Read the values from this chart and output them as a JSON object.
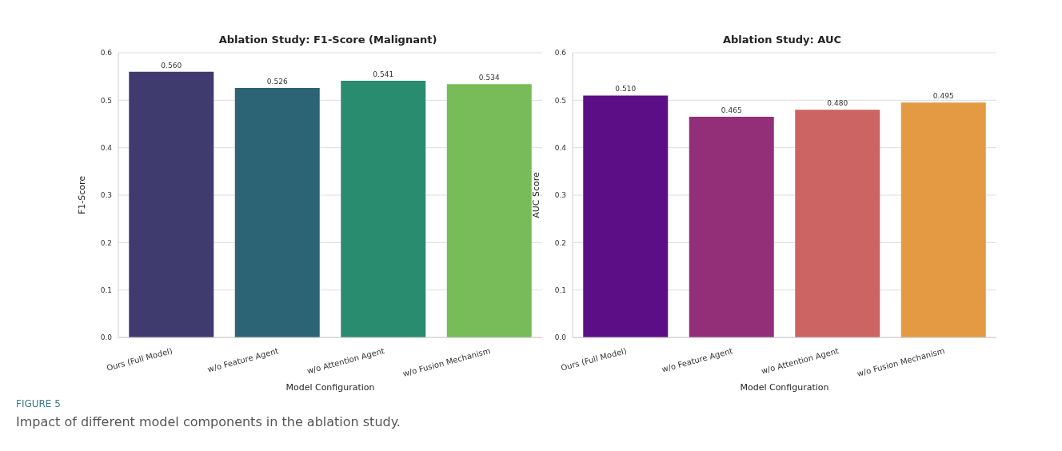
{
  "chart_data": [
    {
      "type": "bar",
      "title": "Ablation Study: F1-Score (Malignant)",
      "xlabel": "Model Configuration",
      "ylabel": "F1-Score",
      "categories": [
        "Ours (Full Model)",
        "w/o Feature Agent",
        "w/o Attention Agent",
        "w/o Fusion Mechanism"
      ],
      "values": [
        0.56,
        0.526,
        0.541,
        0.534
      ],
      "value_labels": [
        "0.560",
        "0.526",
        "0.541",
        "0.534"
      ],
      "colors": [
        "#3f3b6e",
        "#2c6475",
        "#2a8c6f",
        "#77bc58"
      ],
      "ylim": [
        0,
        0.6
      ],
      "yticks": [
        {
          "value": 0,
          "label": "0.0"
        },
        0.1,
        0.2,
        0.3,
        0.4,
        0.5,
        0.6
      ],
      "grid": "y",
      "annotations": [
        "FIGURE 5",
        "Impact of different model components in the ablation study."
      ]
    },
    {
      "type": "bar",
      "title": "Ablation Study: AUC",
      "xlabel": "Model Configuration",
      "ylabel": "AUC Score",
      "categories": [
        "Ours (Full Model)",
        "w/o Feature Agent",
        "w/o Attention Agent",
        "w/o Fusion Mechanism"
      ],
      "values": [
        0.51,
        0.465,
        0.48,
        0.495
      ],
      "value_labels": [
        "0.510",
        "0.465",
        "0.480",
        "0.495"
      ],
      "colors": [
        "#5c0e87",
        "#922f78",
        "#cb6463",
        "#e39a43"
      ],
      "ylim": [
        0,
        0.6
      ],
      "yticks": [
        {
          "value": 0,
          "label": "0.0"
        },
        0.1,
        0.2,
        0.3,
        0.4,
        0.5,
        0.6
      ],
      "grid": "y"
    }
  ]
}
